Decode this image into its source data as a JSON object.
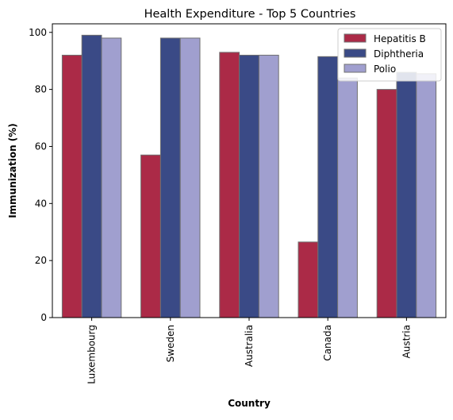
{
  "chart_data": {
    "type": "bar",
    "title": "Health Expenditure - Top 5 Countries",
    "xlabel": "Country",
    "ylabel": "Immunization (%)",
    "categories": [
      "Luxembourg",
      "Sweden",
      "Australia",
      "Canada",
      "Austria"
    ],
    "ylim": [
      0,
      103
    ],
    "yticks": [
      0,
      20,
      40,
      60,
      80,
      100
    ],
    "grid": false,
    "legend_position": "top-right",
    "series": [
      {
        "name": "Hepatitis B",
        "color": "#ab2a47",
        "values": [
          92,
          57,
          93,
          26.5,
          80
        ]
      },
      {
        "name": "Diphtheria",
        "color": "#3a4a86",
        "values": [
          99,
          98,
          92,
          91.5,
          86
        ]
      },
      {
        "name": "Polio",
        "color": "#a09fcf",
        "values": [
          98,
          98,
          92,
          84,
          85.5
        ]
      }
    ],
    "edge_color": "#707070"
  }
}
